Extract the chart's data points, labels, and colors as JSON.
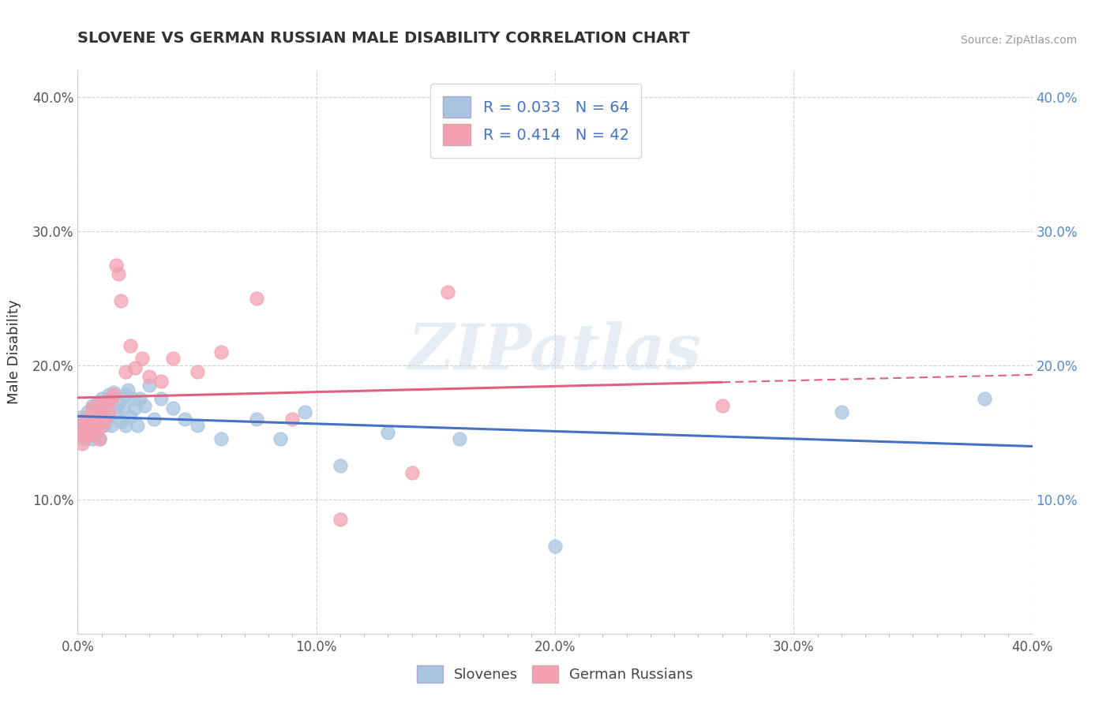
{
  "title": "SLOVENE VS GERMAN RUSSIAN MALE DISABILITY CORRELATION CHART",
  "source": "Source: ZipAtlas.com",
  "ylabel": "Male Disability",
  "xlim": [
    0.0,
    0.4
  ],
  "ylim": [
    0.0,
    0.42
  ],
  "xticks": [
    0.0,
    0.1,
    0.2,
    0.3,
    0.4
  ],
  "yticks": [
    0.1,
    0.2,
    0.3,
    0.4
  ],
  "xtick_labels": [
    "0.0%",
    "10.0%",
    "20.0%",
    "30.0%",
    "40.0%"
  ],
  "ytick_labels": [
    "10.0%",
    "20.0%",
    "30.0%",
    "40.0%"
  ],
  "r_slovene": 0.033,
  "n_slovene": 64,
  "r_german_russian": 0.414,
  "n_german_russian": 42,
  "slovene_color": "#a8c4e0",
  "german_russian_color": "#f4a0b0",
  "trendline_slovene_color": "#4472c4",
  "trendline_german_russian_color": "#e06080",
  "watermark": "ZIPatlas",
  "slovene_x": [
    0.001,
    0.002,
    0.002,
    0.003,
    0.003,
    0.003,
    0.004,
    0.004,
    0.004,
    0.005,
    0.005,
    0.005,
    0.006,
    0.006,
    0.006,
    0.007,
    0.007,
    0.007,
    0.008,
    0.008,
    0.008,
    0.009,
    0.009,
    0.009,
    0.01,
    0.01,
    0.011,
    0.011,
    0.012,
    0.012,
    0.013,
    0.013,
    0.014,
    0.014,
    0.015,
    0.016,
    0.017,
    0.018,
    0.019,
    0.02,
    0.02,
    0.021,
    0.022,
    0.023,
    0.024,
    0.025,
    0.026,
    0.028,
    0.03,
    0.032,
    0.035,
    0.04,
    0.045,
    0.05,
    0.06,
    0.075,
    0.085,
    0.095,
    0.11,
    0.13,
    0.16,
    0.2,
    0.32,
    0.38
  ],
  "slovene_y": [
    0.155,
    0.148,
    0.162,
    0.158,
    0.145,
    0.152,
    0.165,
    0.148,
    0.16,
    0.158,
    0.163,
    0.15,
    0.17,
    0.155,
    0.145,
    0.168,
    0.158,
    0.148,
    0.172,
    0.163,
    0.155,
    0.17,
    0.158,
    0.145,
    0.175,
    0.162,
    0.168,
    0.155,
    0.172,
    0.16,
    0.178,
    0.163,
    0.175,
    0.155,
    0.18,
    0.165,
    0.172,
    0.158,
    0.168,
    0.178,
    0.155,
    0.182,
    0.162,
    0.175,
    0.168,
    0.155,
    0.175,
    0.17,
    0.185,
    0.16,
    0.175,
    0.168,
    0.16,
    0.155,
    0.145,
    0.16,
    0.145,
    0.165,
    0.125,
    0.15,
    0.145,
    0.065,
    0.165,
    0.175
  ],
  "german_russian_x": [
    0.001,
    0.002,
    0.002,
    0.003,
    0.003,
    0.004,
    0.004,
    0.005,
    0.005,
    0.006,
    0.006,
    0.007,
    0.007,
    0.008,
    0.008,
    0.009,
    0.009,
    0.01,
    0.01,
    0.011,
    0.012,
    0.013,
    0.014,
    0.015,
    0.016,
    0.017,
    0.018,
    0.02,
    0.022,
    0.024,
    0.027,
    0.03,
    0.035,
    0.04,
    0.05,
    0.06,
    0.075,
    0.09,
    0.11,
    0.14,
    0.155,
    0.27
  ],
  "german_russian_y": [
    0.148,
    0.155,
    0.142,
    0.16,
    0.15,
    0.155,
    0.148,
    0.162,
    0.155,
    0.168,
    0.148,
    0.16,
    0.152,
    0.165,
    0.155,
    0.172,
    0.145,
    0.168,
    0.155,
    0.16,
    0.172,
    0.165,
    0.175,
    0.178,
    0.275,
    0.268,
    0.248,
    0.195,
    0.215,
    0.198,
    0.205,
    0.192,
    0.188,
    0.205,
    0.195,
    0.21,
    0.25,
    0.16,
    0.085,
    0.12,
    0.255,
    0.17
  ]
}
